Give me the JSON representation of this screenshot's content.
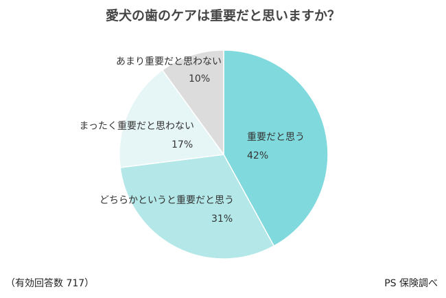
{
  "chart_data": {
    "type": "pie",
    "title": "愛犬の歯のケアは重要だと思いますか？",
    "slices": [
      {
        "label": "重要だと思う",
        "value": 42,
        "value_label": "42%",
        "color": "#80d9dc"
      },
      {
        "label": "どちらかというと重要だと思う",
        "value": 31,
        "value_label": "31%",
        "color": "#b3e7e8"
      },
      {
        "label": "まったく重要だと思わない",
        "value": 17,
        "value_label": "17%",
        "color": "#e6f5f6"
      },
      {
        "label": "あまり重要だと思わない",
        "value": 10,
        "value_label": "10%",
        "color": "#dcdcdc"
      }
    ],
    "start": "top",
    "direction": "clockwise"
  },
  "footer": {
    "sample": "（有効回答数 717）",
    "source": "PS 保険調べ"
  }
}
